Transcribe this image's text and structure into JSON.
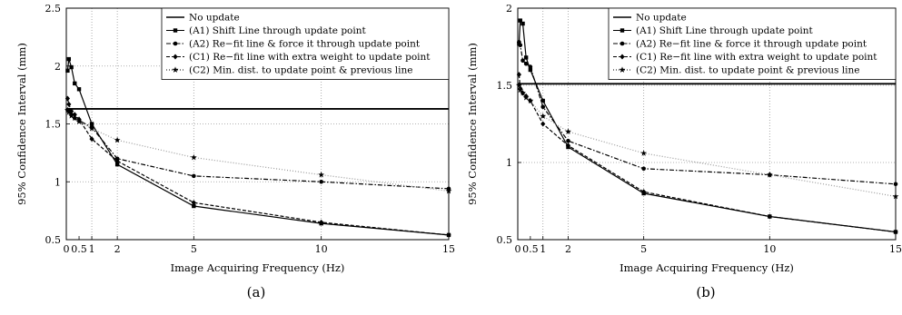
{
  "chart_data": [
    {
      "type": "line",
      "caption": "(a)",
      "xlabel": "Image Acquiring Frequency (Hz)",
      "ylabel": "95% Confidence Interval (mm)",
      "xlim": [
        0,
        15
      ],
      "ylim": [
        0.5,
        2.5
      ],
      "xticks": [
        0,
        1,
        2,
        5,
        10,
        15
      ],
      "extra_xtick_labels": [
        0.5
      ],
      "yticks": [
        0.5,
        1,
        1.5,
        2,
        2.5
      ],
      "grid": "dotted",
      "legend_position": "top-right",
      "series": [
        {
          "name": "No update",
          "style": "solid",
          "marker": "none",
          "x": [
            0,
            15
          ],
          "y": [
            1.63,
            1.63
          ]
        },
        {
          "name": "(A1) Shift Line through update point",
          "style": "solid",
          "marker": "square",
          "x": [
            0.05,
            0.1,
            0.2,
            0.33,
            0.5,
            1,
            2,
            5,
            10,
            15
          ],
          "y": [
            1.96,
            2.06,
            1.99,
            1.85,
            1.8,
            1.5,
            1.15,
            0.79,
            0.64,
            0.54
          ]
        },
        {
          "name": "(A2) Re−fit line & force it through update point",
          "style": "dashdot",
          "marker": "dot",
          "x": [
            0.05,
            0.1,
            0.2,
            0.33,
            0.5,
            1,
            2,
            5,
            10,
            15
          ],
          "y": [
            1.62,
            1.62,
            1.58,
            1.55,
            1.53,
            1.47,
            1.2,
            1.05,
            1.0,
            0.94
          ]
        },
        {
          "name": "(C1) Re−fit line with extra weight to update point",
          "style": "dashed",
          "marker": "diamond",
          "x": [
            0.05,
            0.1,
            0.2,
            0.33,
            0.5,
            1,
            2,
            5,
            10,
            15
          ],
          "y": [
            1.72,
            1.67,
            1.61,
            1.58,
            1.54,
            1.37,
            1.18,
            0.82,
            0.65,
            0.54
          ]
        },
        {
          "name": "(C2) Min. dist. to update point & previous line",
          "style": "dotted",
          "marker": "star",
          "x": [
            0.05,
            0.1,
            0.2,
            0.33,
            0.5,
            1,
            2,
            5,
            10,
            15
          ],
          "y": [
            1.62,
            1.6,
            1.57,
            1.55,
            1.52,
            1.46,
            1.36,
            1.21,
            1.06,
            0.92
          ]
        }
      ]
    },
    {
      "type": "line",
      "caption": "(b)",
      "xlabel": "Image Acquiring Frequency (Hz)",
      "ylabel": "95% Confidence Interval (mm)",
      "xlim": [
        0,
        15
      ],
      "ylim": [
        0.5,
        2
      ],
      "xticks": [
        0,
        1,
        2,
        5,
        10,
        15
      ],
      "extra_xtick_labels": [
        0.5
      ],
      "yticks": [
        0.5,
        1,
        1.5,
        2
      ],
      "grid": "dotted",
      "legend_position": "top-right",
      "series": [
        {
          "name": "No update",
          "style": "solid",
          "marker": "none",
          "x": [
            0,
            15
          ],
          "y": [
            1.51,
            1.51
          ]
        },
        {
          "name": "(A1) Shift Line through update point",
          "style": "solid",
          "marker": "square",
          "x": [
            0.05,
            0.1,
            0.2,
            0.33,
            0.5,
            1,
            2,
            5,
            10,
            15
          ],
          "y": [
            1.77,
            1.92,
            1.9,
            1.68,
            1.6,
            1.4,
            1.1,
            0.8,
            0.65,
            0.55
          ]
        },
        {
          "name": "(A2) Re−fit line & force it through update point",
          "style": "dashdot",
          "marker": "dot",
          "x": [
            0.05,
            0.1,
            0.2,
            0.33,
            0.5,
            1,
            2,
            5,
            10,
            15
          ],
          "y": [
            1.78,
            1.76,
            1.66,
            1.64,
            1.62,
            1.36,
            1.14,
            0.96,
            0.92,
            0.86
          ]
        },
        {
          "name": "(C1) Re−fit line with extra weight to update point",
          "style": "dashed",
          "marker": "diamond",
          "x": [
            0.05,
            0.1,
            0.2,
            0.33,
            0.5,
            1,
            2,
            5,
            10,
            15
          ],
          "y": [
            1.57,
            1.48,
            1.45,
            1.43,
            1.4,
            1.25,
            1.11,
            0.81,
            0.65,
            0.55
          ]
        },
        {
          "name": "(C2) Min. dist. to update point & previous line",
          "style": "dotted",
          "marker": "star",
          "x": [
            0.05,
            0.1,
            0.2,
            0.33,
            0.5,
            1,
            2,
            5,
            10,
            15
          ],
          "y": [
            1.5,
            1.47,
            1.45,
            1.42,
            1.4,
            1.3,
            1.2,
            1.06,
            0.92,
            0.78
          ]
        }
      ]
    }
  ]
}
